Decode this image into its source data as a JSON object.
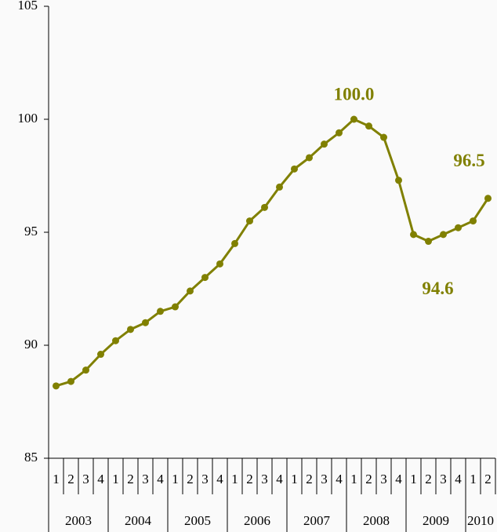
{
  "chart_data": {
    "type": "line",
    "categories": [
      "1",
      "2",
      "3",
      "4",
      "1",
      "2",
      "3",
      "4",
      "1",
      "2",
      "3",
      "4",
      "1",
      "2",
      "3",
      "4",
      "1",
      "2",
      "3",
      "4",
      "1",
      "2",
      "3",
      "4",
      "1",
      "2",
      "3",
      "4",
      "1",
      "2"
    ],
    "years": [
      "2003",
      "2004",
      "2005",
      "2006",
      "2007",
      "2008",
      "2009",
      "2010"
    ],
    "series": [
      {
        "color": "#808000",
        "values": [
          88.2,
          88.4,
          88.9,
          89.6,
          90.2,
          90.7,
          91.0,
          91.5,
          91.7,
          92.4,
          93.0,
          93.6,
          94.5,
          95.5,
          96.1,
          97.0,
          97.8,
          98.3,
          98.9,
          99.4,
          100.0,
          99.7,
          99.2,
          97.3,
          94.9,
          94.6,
          94.9,
          95.2,
          95.5,
          96.5
        ],
        "value_labels": [
          null,
          null,
          null,
          null,
          null,
          null,
          null,
          null,
          null,
          null,
          null,
          null,
          null,
          null,
          null,
          null,
          null,
          null,
          null,
          null,
          "100.0",
          null,
          null,
          null,
          null,
          "94.6",
          null,
          null,
          null,
          "96.5"
        ]
      }
    ],
    "ylim": [
      85,
      105
    ],
    "yticks": [
      85,
      90,
      95,
      100,
      105
    ],
    "grid": false
  }
}
